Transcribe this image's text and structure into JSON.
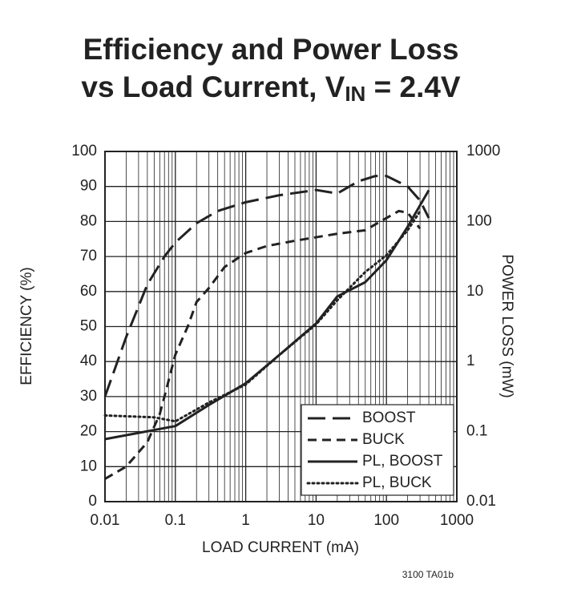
{
  "chart_data": {
    "type": "line",
    "title": [
      "Efficiency and Power Loss",
      "vs Load Current, V",
      "IN",
      " = 2.4V"
    ],
    "xlabel": "LOAD CURRENT (mA)",
    "ylabel": "EFFICIENCY (%)",
    "y2label": "POWER LOSS (mW)",
    "xscale": "log",
    "y2scale": "log",
    "grid": true,
    "legend": "lower right",
    "xlim": [
      0.01,
      1000
    ],
    "xticks": [
      0.01,
      0.1,
      1,
      10,
      100,
      1000
    ],
    "ylim": [
      0,
      100
    ],
    "yticks": [
      0,
      10,
      20,
      30,
      40,
      50,
      60,
      70,
      80,
      90,
      100
    ],
    "y2lim": [
      0.01,
      1000
    ],
    "y2ticks": [
      0.01,
      0.1,
      1,
      10,
      100,
      1000
    ],
    "series": [
      {
        "name": "BOOST",
        "color": "#222222",
        "linestyle": "longdash",
        "x": [
          0.01,
          0.02,
          0.04,
          0.07,
          0.1,
          0.2,
          0.4,
          1,
          3,
          10,
          20,
          40,
          70,
          100,
          200,
          300,
          400
        ],
        "values": [
          30,
          47,
          62,
          70,
          74,
          79.5,
          83,
          85.5,
          87.5,
          89,
          88,
          91.5,
          93,
          93,
          90,
          86,
          81
        ]
      },
      {
        "name": "BUCK",
        "color": "#222222",
        "linestyle": "dash",
        "x": [
          0.01,
          0.02,
          0.04,
          0.06,
          0.07,
          0.1,
          0.15,
          0.2,
          0.3,
          0.5,
          1,
          2,
          5,
          10,
          20,
          50,
          100,
          150,
          200,
          300
        ],
        "values": [
          6.5,
          10,
          17,
          25,
          30,
          42,
          50,
          57,
          61,
          67,
          71,
          73,
          74.5,
          75.5,
          76.5,
          77.5,
          81,
          83,
          82.5,
          78
        ]
      },
      {
        "name": "PL, BOOST",
        "color": "#222222",
        "linestyle": "solid",
        "axis": "y2",
        "x": [
          0.01,
          0.1,
          0.3,
          1,
          3,
          10,
          20,
          50,
          100,
          200,
          400
        ],
        "values": [
          0.078,
          0.12,
          0.24,
          0.49,
          1.24,
          3.5,
          8.5,
          13.6,
          28,
          84,
          280
        ]
      },
      {
        "name": "PL, BUCK",
        "color": "#222222",
        "linestyle": "dotted",
        "axis": "y2",
        "x": [
          0.01,
          0.05,
          0.1,
          0.3,
          1,
          3,
          10,
          20,
          50,
          100,
          200,
          300
        ],
        "values": [
          0.17,
          0.16,
          0.14,
          0.26,
          0.47,
          1.24,
          3.4,
          7.5,
          19,
          33,
          75,
          140
        ]
      }
    ],
    "footnote": "3100 TA01b"
  }
}
